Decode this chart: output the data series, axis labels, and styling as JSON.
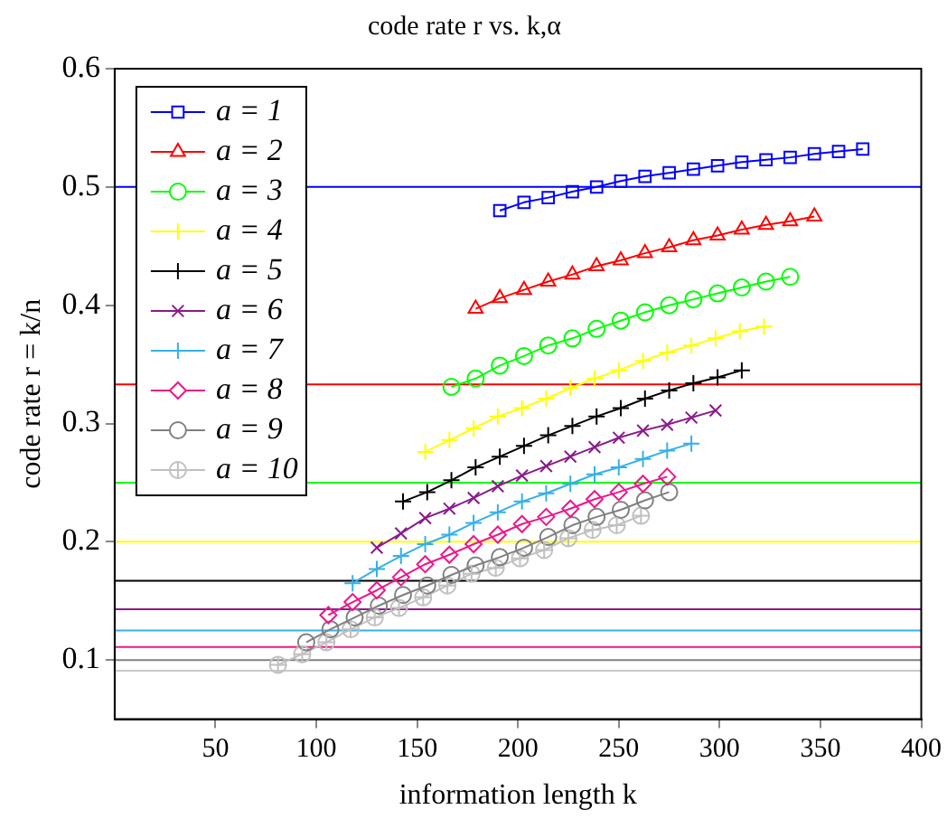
{
  "chart_data": {
    "type": "line",
    "title": "code rate r vs. k,α",
    "xlabel": "information length k",
    "ylabel": "code rate r = k/n",
    "xlim": [
      0,
      400
    ],
    "xticks": [
      50,
      100,
      150,
      200,
      250,
      300,
      350,
      400
    ],
    "ylim": [
      0.05,
      0.6
    ],
    "yticks": [
      0.1,
      0.2,
      0.3,
      0.4,
      0.5,
      0.6
    ],
    "grid": false,
    "legend": "top left",
    "line_style": "solid",
    "ref_lines": [
      {
        "axis": "y",
        "value": 0.5,
        "color": "#0000ff"
      },
      {
        "axis": "y",
        "value": 0.333,
        "color": "#ff0000"
      },
      {
        "axis": "y",
        "value": 0.25,
        "color": "#00ff00"
      },
      {
        "axis": "y",
        "value": 0.2,
        "color": "#ffff00"
      },
      {
        "axis": "y",
        "value": 0.167,
        "color": "#000000"
      },
      {
        "axis": "y",
        "value": 0.143,
        "color": "#8b1a8b"
      },
      {
        "axis": "y",
        "value": 0.125,
        "color": "#35b0e8"
      },
      {
        "axis": "y",
        "value": 0.111,
        "color": "#ec188c"
      },
      {
        "axis": "y",
        "value": 0.1,
        "color": "#808080"
      },
      {
        "axis": "y",
        "value": 0.091,
        "color": "#c8c8c8"
      }
    ],
    "series": [
      {
        "name": "a = 1",
        "color": "#0000ff",
        "marker": "square",
        "x": [
          191,
          203,
          215,
          227,
          239,
          251,
          263,
          275,
          287,
          299,
          311,
          323,
          335,
          347,
          359,
          371
        ],
        "values": [
          0.48,
          0.487,
          0.491,
          0.496,
          0.5,
          0.505,
          0.509,
          0.512,
          0.515,
          0.518,
          0.521,
          0.523,
          0.525,
          0.528,
          0.53,
          0.532
        ]
      },
      {
        "name": "a = 2",
        "color": "#ff0000",
        "marker": "triangle",
        "x": [
          179,
          191,
          203,
          215,
          227,
          239,
          251,
          263,
          275,
          287,
          299,
          311,
          323,
          335,
          347
        ],
        "values": [
          0.397,
          0.406,
          0.413,
          0.42,
          0.426,
          0.433,
          0.438,
          0.444,
          0.449,
          0.455,
          0.459,
          0.464,
          0.468,
          0.471,
          0.475
        ]
      },
      {
        "name": "a = 3",
        "color": "#00ff00",
        "marker": "circle",
        "x": [
          167,
          179,
          191,
          203,
          215,
          227,
          239,
          251,
          263,
          275,
          287,
          299,
          311,
          323,
          335
        ],
        "values": [
          0.331,
          0.338,
          0.349,
          0.357,
          0.366,
          0.372,
          0.38,
          0.387,
          0.394,
          0.4,
          0.405,
          0.41,
          0.415,
          0.42,
          0.424
        ]
      },
      {
        "name": "a = 4",
        "color": "#ffff00",
        "marker": "cross",
        "x": [
          154,
          166,
          178,
          190,
          202,
          214,
          226,
          238,
          250,
          262,
          274,
          286,
          298,
          310,
          322
        ],
        "values": [
          0.276,
          0.286,
          0.296,
          0.306,
          0.313,
          0.321,
          0.33,
          0.338,
          0.345,
          0.353,
          0.36,
          0.366,
          0.372,
          0.378,
          0.382
        ]
      },
      {
        "name": "a = 5",
        "color": "#000000",
        "marker": "cross",
        "x": [
          143,
          155,
          167,
          179,
          191,
          203,
          215,
          227,
          239,
          251,
          263,
          275,
          287,
          299,
          311
        ],
        "values": [
          0.234,
          0.242,
          0.252,
          0.263,
          0.272,
          0.281,
          0.29,
          0.298,
          0.306,
          0.313,
          0.321,
          0.328,
          0.334,
          0.339,
          0.345
        ]
      },
      {
        "name": "a = 6",
        "color": "#8b1a8b",
        "marker": "x",
        "x": [
          130,
          142,
          154,
          166,
          178,
          190,
          202,
          214,
          226,
          238,
          250,
          262,
          274,
          286,
          298
        ],
        "values": [
          0.195,
          0.207,
          0.22,
          0.228,
          0.237,
          0.247,
          0.256,
          0.264,
          0.272,
          0.28,
          0.288,
          0.294,
          0.299,
          0.305,
          0.311
        ]
      },
      {
        "name": "a = 7",
        "color": "#35b0e8",
        "marker": "cross",
        "x": [
          118,
          130,
          142,
          154,
          166,
          178,
          190,
          202,
          214,
          226,
          238,
          250,
          262,
          274,
          286
        ],
        "values": [
          0.165,
          0.177,
          0.188,
          0.198,
          0.206,
          0.216,
          0.225,
          0.234,
          0.241,
          0.249,
          0.257,
          0.263,
          0.27,
          0.277,
          0.283
        ]
      },
      {
        "name": "a = 8",
        "color": "#ec188c",
        "marker": "diamond",
        "x": [
          106,
          118,
          130,
          142,
          154,
          166,
          178,
          190,
          202,
          214,
          226,
          238,
          250,
          262,
          274
        ],
        "values": [
          0.138,
          0.149,
          0.159,
          0.17,
          0.181,
          0.189,
          0.198,
          0.206,
          0.215,
          0.221,
          0.228,
          0.236,
          0.242,
          0.249,
          0.255
        ]
      },
      {
        "name": "a = 9",
        "color": "#808080",
        "marker": "circle",
        "x": [
          95,
          107,
          119,
          131,
          143,
          155,
          167,
          179,
          191,
          203,
          215,
          227,
          239,
          251,
          263,
          275
        ],
        "values": [
          0.115,
          0.126,
          0.136,
          0.146,
          0.155,
          0.163,
          0.172,
          0.18,
          0.187,
          0.195,
          0.204,
          0.214,
          0.221,
          0.227,
          0.235,
          0.242
        ]
      },
      {
        "name": "a = 10",
        "color": "#c0c0c0",
        "marker": "circle-cross",
        "x": [
          81,
          93,
          105,
          117,
          129,
          141,
          153,
          165,
          177,
          189,
          201,
          213,
          225,
          237,
          249,
          261
        ],
        "values": [
          0.096,
          0.105,
          0.115,
          0.126,
          0.136,
          0.144,
          0.153,
          0.163,
          0.173,
          0.178,
          0.186,
          0.193,
          0.203,
          0.21,
          0.214,
          0.222
        ]
      }
    ]
  }
}
